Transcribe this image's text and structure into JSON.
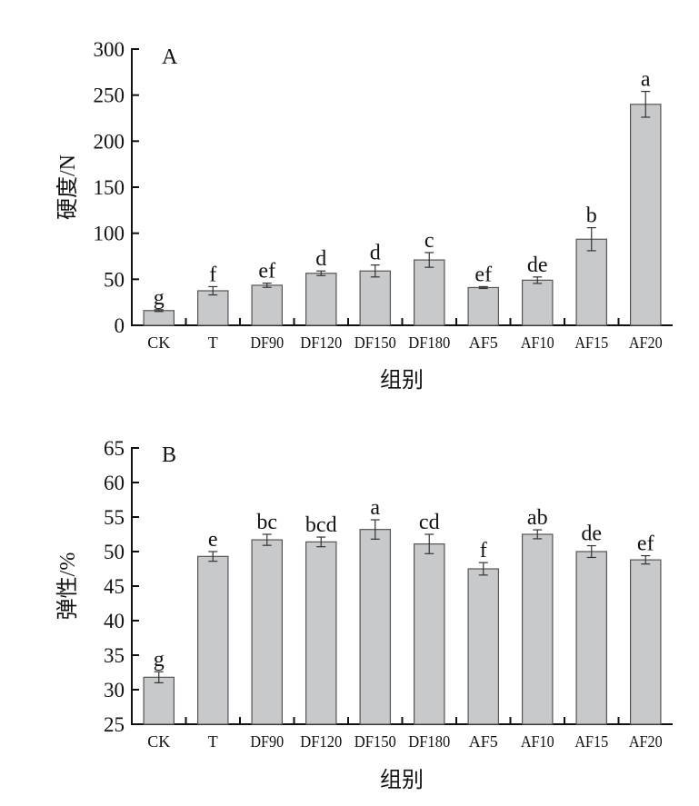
{
  "chart_data": [
    {
      "type": "bar",
      "panel": "A",
      "title": "",
      "xlabel": "组别",
      "ylabel": "硬度/N",
      "ylim": [
        0,
        300
      ],
      "yticks": [
        0,
        50,
        100,
        150,
        200,
        250,
        300
      ],
      "categories": [
        "CK",
        "T",
        "DF90",
        "DF120",
        "DF150",
        "DF180",
        "AF5",
        "AF10",
        "AF15",
        "AF20"
      ],
      "values": [
        16,
        37.5,
        43.5,
        56.5,
        59,
        71,
        41,
        49,
        93.5,
        240
      ],
      "errors": [
        1,
        4.5,
        2.3,
        2.5,
        6.5,
        8,
        1,
        3.5,
        12.5,
        14
      ],
      "significance": [
        "g",
        "f",
        "ef",
        "d",
        "d",
        "c",
        "ef",
        "de",
        "b",
        "a"
      ],
      "bar_color": "#c8c9cb",
      "grid": false
    },
    {
      "type": "bar",
      "panel": "B",
      "title": "",
      "xlabel": "组别",
      "ylabel": "弹性/%",
      "ylim": [
        25,
        65
      ],
      "yticks": [
        25,
        30,
        35,
        40,
        45,
        50,
        55,
        60,
        65
      ],
      "categories": [
        "CK",
        "T",
        "DF90",
        "DF120",
        "DF150",
        "DF180",
        "AF5",
        "AF10",
        "AF15",
        "AF20"
      ],
      "values": [
        31.8,
        49.3,
        51.7,
        51.4,
        53.2,
        51.1,
        47.5,
        52.5,
        50.0,
        48.8
      ],
      "errors": [
        0.8,
        0.7,
        0.8,
        0.7,
        1.4,
        1.4,
        0.9,
        0.65,
        0.85,
        0.6
      ],
      "significance": [
        "g",
        "e",
        "bc",
        "bcd",
        "a",
        "cd",
        "f",
        "ab",
        "de",
        "ef"
      ],
      "bar_color": "#c8c9cb",
      "grid": false
    }
  ]
}
